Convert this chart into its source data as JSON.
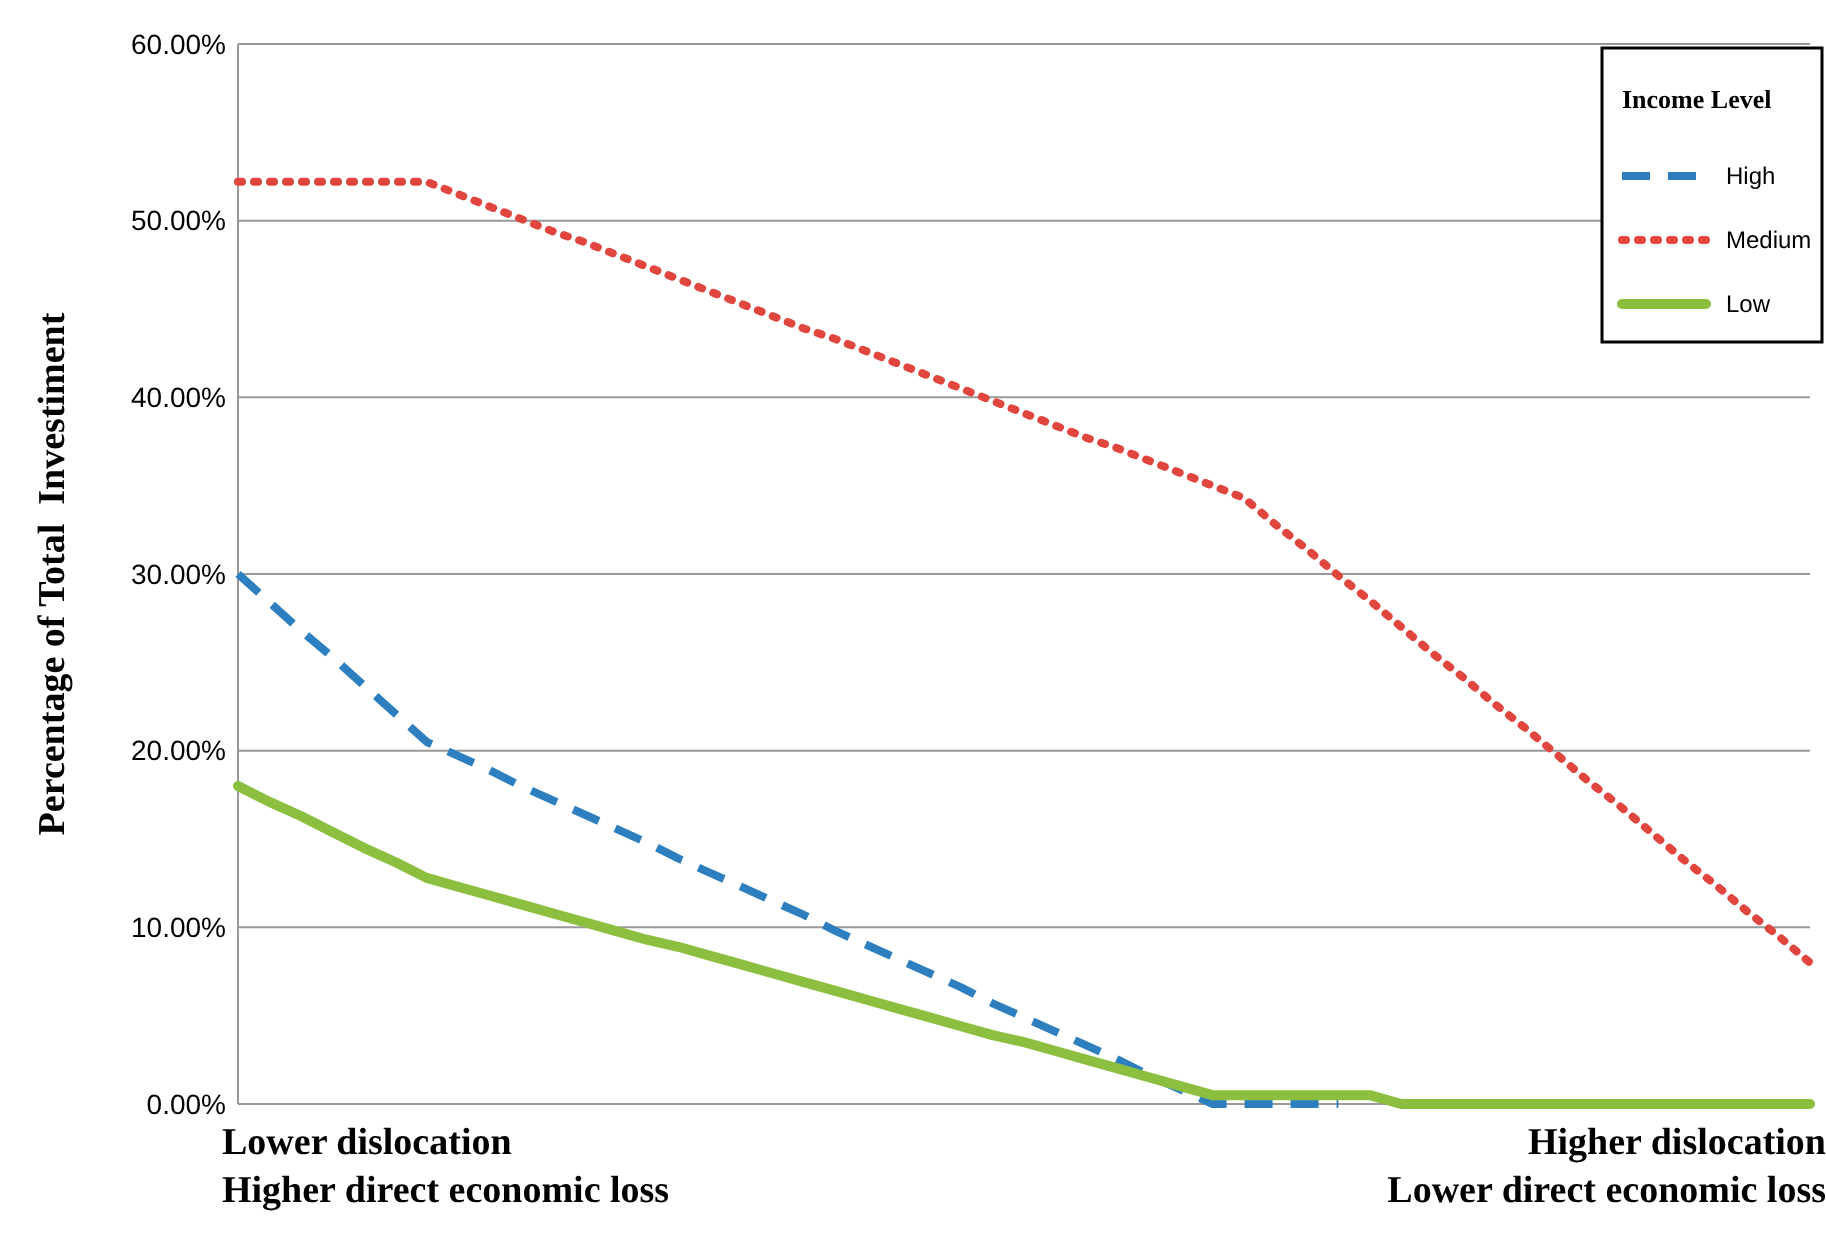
{
  "chart_data": {
    "type": "line",
    "ylabel": "Percentage of Total  Investiment",
    "legend_title": "Income Level",
    "categories": [
      null,
      null,
      null,
      null,
      null,
      null,
      null,
      null,
      null,
      null,
      null,
      null,
      null,
      null,
      null,
      null,
      null,
      null,
      null,
      null,
      null,
      null,
      null,
      null,
      null,
      null,
      null,
      null,
      null,
      null,
      null,
      null,
      null,
      null,
      null,
      null,
      null,
      null,
      null,
      null,
      null,
      null,
      null,
      null,
      null,
      null,
      null,
      null,
      null,
      null,
      null
    ],
    "series": [
      {
        "name": "High",
        "color": "#2e7fc0",
        "line_style": "dashed",
        "values": [
          30,
          28.4,
          26.8,
          25.3,
          23.7,
          22.1,
          20.5,
          19.7,
          18.9,
          18.0,
          17.2,
          16.4,
          15.6,
          14.8,
          13.9,
          13.1,
          12.3,
          11.5,
          10.7,
          9.8,
          9.0,
          8.2,
          7.4,
          6.6,
          5.7,
          4.9,
          4.1,
          3.3,
          2.5,
          1.6,
          0.8,
          0,
          0,
          0,
          0,
          0,
          null,
          null,
          null,
          null,
          null,
          null,
          null,
          null,
          null,
          null,
          null,
          null,
          null,
          null,
          null
        ]
      },
      {
        "name": "Medium",
        "color": "#e0463e",
        "line_style": "dotted",
        "values": [
          52.2,
          52.2,
          52.2,
          52.2,
          52.2,
          52.2,
          52.2,
          51.5,
          50.8,
          50.1,
          49.4,
          48.8,
          48.1,
          47.4,
          46.7,
          46.0,
          45.3,
          44.6,
          43.9,
          43.3,
          42.6,
          41.9,
          41.2,
          40.5,
          39.8,
          39.1,
          38.4,
          37.7,
          37.1,
          36.4,
          35.7,
          35.0,
          34.3,
          32.8,
          31.4,
          29.9,
          28.5,
          27.0,
          25.5,
          24.1,
          22.6,
          21.2,
          19.7,
          18.2,
          16.8,
          15.3,
          13.8,
          12.4,
          10.9,
          9.5,
          8.0
        ]
      },
      {
        "name": "Low",
        "color": "#8cbf3f",
        "line_style": "solid",
        "values": [
          18,
          17.1,
          16.3,
          15.4,
          14.5,
          13.7,
          12.8,
          12.3,
          11.8,
          11.3,
          10.8,
          10.3,
          9.8,
          9.3,
          8.9,
          8.4,
          7.9,
          7.4,
          6.9,
          6.4,
          5.9,
          5.4,
          4.9,
          4.4,
          3.9,
          3.5,
          3.0,
          2.5,
          2.0,
          1.5,
          1.0,
          0.5,
          0.5,
          0.5,
          0.5,
          0.5,
          0.5,
          0,
          0,
          0,
          0,
          0,
          0,
          0,
          0,
          0,
          0,
          0,
          0,
          0,
          0
        ]
      }
    ],
    "ylim": [
      0,
      60
    ],
    "yticks": [
      {
        "value": 0,
        "label": "0.00%"
      },
      {
        "value": 10,
        "label": "10.00%"
      },
      {
        "value": 20,
        "label": "20.00%"
      },
      {
        "value": 30,
        "label": "30.00%"
      },
      {
        "value": 40,
        "label": "40.00%"
      },
      {
        "value": 50,
        "label": "50.00%"
      },
      {
        "value": 60,
        "label": "60.00%"
      }
    ],
    "grid": "y",
    "legend": "top right",
    "annotations": [
      "Lower dislocation\nHigher direct economic loss",
      "Higher dislocation\nLower direct economic loss"
    ]
  }
}
